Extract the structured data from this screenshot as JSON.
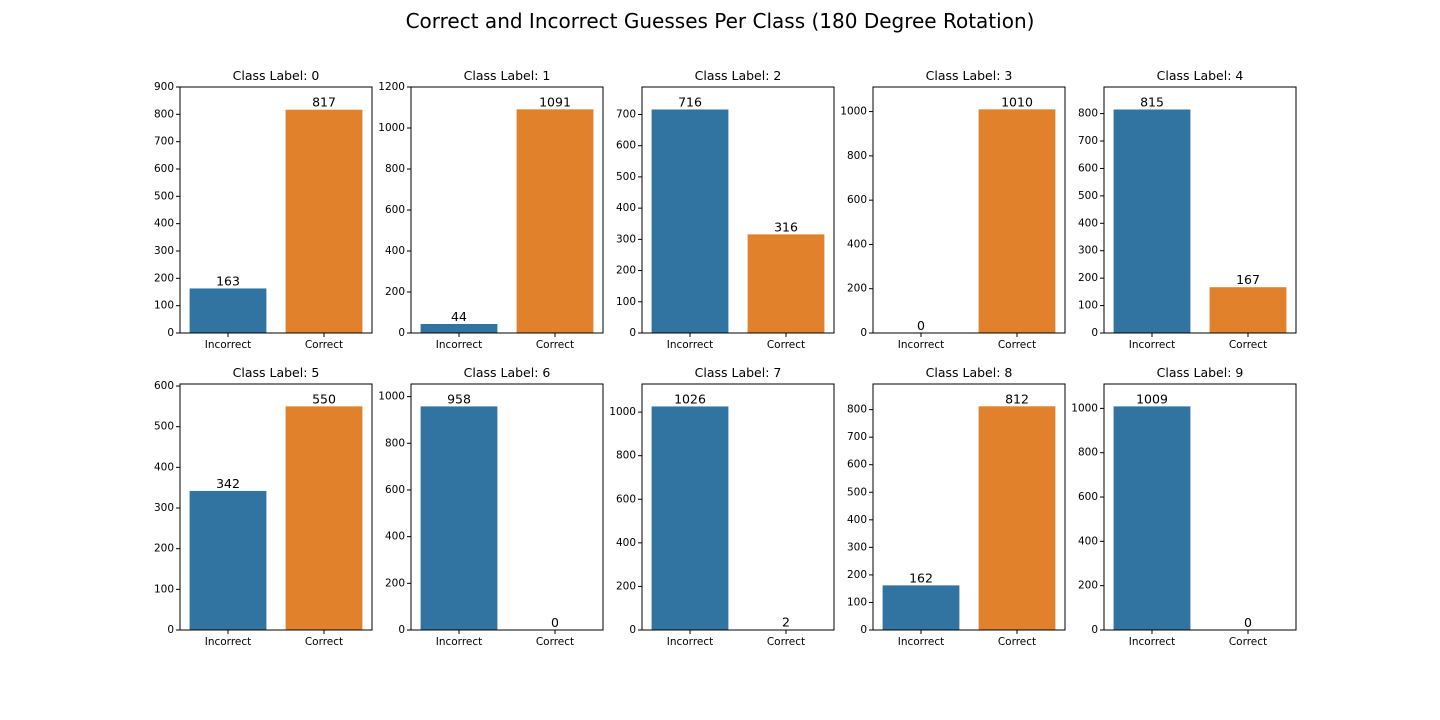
{
  "title": "Correct and Incorrect Guesses Per Class (180 Degree Rotation)",
  "colors": {
    "incorrect": "#3274a1",
    "correct": "#e1812c"
  },
  "chart_data": [
    {
      "type": "bar",
      "title": "Class Label: 0",
      "categories": [
        "Incorrect",
        "Correct"
      ],
      "values": [
        163,
        817
      ],
      "ylim": [
        0,
        900
      ],
      "yticks": [
        0,
        100,
        200,
        300,
        400,
        500,
        600,
        700,
        800,
        900
      ]
    },
    {
      "type": "bar",
      "title": "Class Label: 1",
      "categories": [
        "Incorrect",
        "Correct"
      ],
      "values": [
        44,
        1091
      ],
      "ylim": [
        0,
        1200
      ],
      "yticks": [
        0,
        200,
        400,
        600,
        800,
        1000,
        1200
      ]
    },
    {
      "type": "bar",
      "title": "Class Label: 2",
      "categories": [
        "Incorrect",
        "Correct"
      ],
      "values": [
        716,
        316
      ],
      "ylim": [
        0,
        788
      ],
      "yticks": [
        0,
        100,
        200,
        300,
        400,
        500,
        600,
        700
      ]
    },
    {
      "type": "bar",
      "title": "Class Label: 3",
      "categories": [
        "Incorrect",
        "Correct"
      ],
      "values": [
        0,
        1010
      ],
      "ylim": [
        0,
        1111
      ],
      "yticks": [
        0,
        200,
        400,
        600,
        800,
        1000
      ]
    },
    {
      "type": "bar",
      "title": "Class Label: 4",
      "categories": [
        "Incorrect",
        "Correct"
      ],
      "values": [
        815,
        167
      ],
      "ylim": [
        0,
        897
      ],
      "yticks": [
        0,
        100,
        200,
        300,
        400,
        500,
        600,
        700,
        800
      ]
    },
    {
      "type": "bar",
      "title": "Class Label: 5",
      "categories": [
        "Incorrect",
        "Correct"
      ],
      "values": [
        342,
        550
      ],
      "ylim": [
        0,
        605
      ],
      "yticks": [
        0,
        100,
        200,
        300,
        400,
        500,
        600
      ]
    },
    {
      "type": "bar",
      "title": "Class Label: 6",
      "categories": [
        "Incorrect",
        "Correct"
      ],
      "values": [
        958,
        0
      ],
      "ylim": [
        0,
        1054
      ],
      "yticks": [
        0,
        200,
        400,
        600,
        800,
        1000
      ]
    },
    {
      "type": "bar",
      "title": "Class Label: 7",
      "categories": [
        "Incorrect",
        "Correct"
      ],
      "values": [
        1026,
        2
      ],
      "ylim": [
        0,
        1129
      ],
      "yticks": [
        0,
        200,
        400,
        600,
        800,
        1000
      ]
    },
    {
      "type": "bar",
      "title": "Class Label: 8",
      "categories": [
        "Incorrect",
        "Correct"
      ],
      "values": [
        162,
        812
      ],
      "ylim": [
        0,
        893
      ],
      "yticks": [
        0,
        100,
        200,
        300,
        400,
        500,
        600,
        700,
        800
      ]
    },
    {
      "type": "bar",
      "title": "Class Label: 9",
      "categories": [
        "Incorrect",
        "Correct"
      ],
      "values": [
        1009,
        0
      ],
      "ylim": [
        0,
        1110
      ],
      "yticks": [
        0,
        200,
        400,
        600,
        800,
        1000
      ]
    }
  ]
}
